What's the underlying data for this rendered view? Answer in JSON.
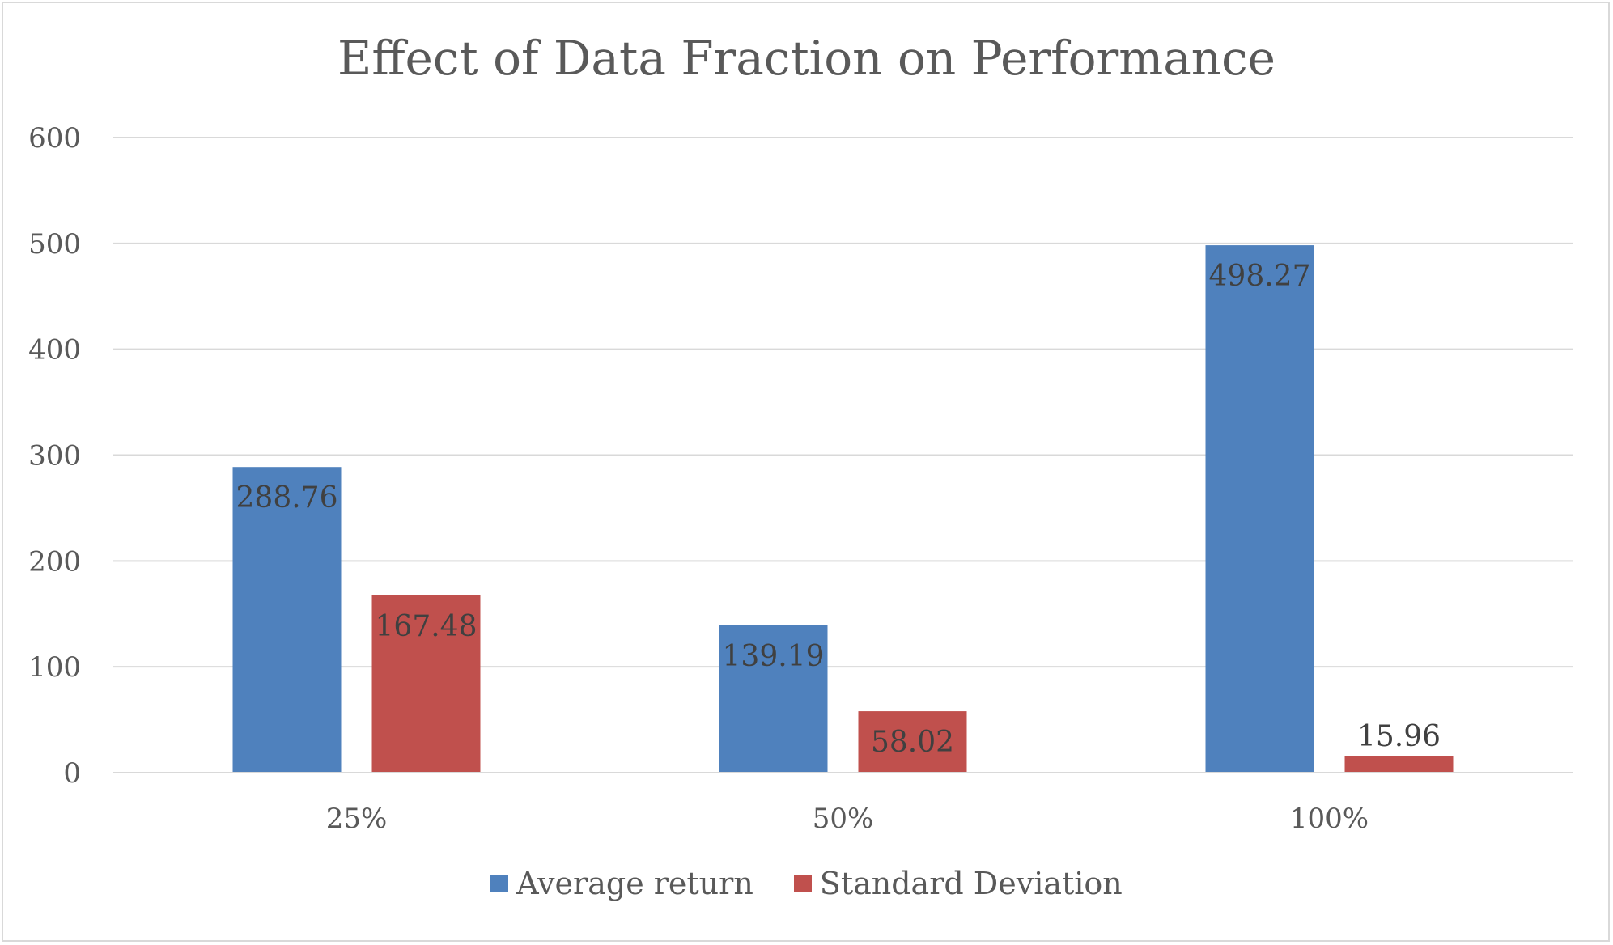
{
  "chart_data": {
    "type": "bar",
    "title": "Effect of Data Fraction on Performance",
    "categories": [
      "25%",
      "50%",
      "100%"
    ],
    "series": [
      {
        "name": "Average return",
        "color": "#4f81bd",
        "values": [
          288.76,
          139.19,
          498.27
        ],
        "labels": [
          "288.76",
          "139.19",
          "498.27"
        ]
      },
      {
        "name": "Standard Deviation",
        "color": "#c0504d",
        "values": [
          167.48,
          58.02,
          15.96
        ],
        "labels": [
          "167.48",
          "58.02",
          "15.96"
        ]
      }
    ],
    "ylim": [
      0,
      600
    ],
    "yticks": [
      "0",
      "100",
      "200",
      "300",
      "400",
      "500",
      "600"
    ],
    "grid": true,
    "legend_position": "bottom"
  }
}
